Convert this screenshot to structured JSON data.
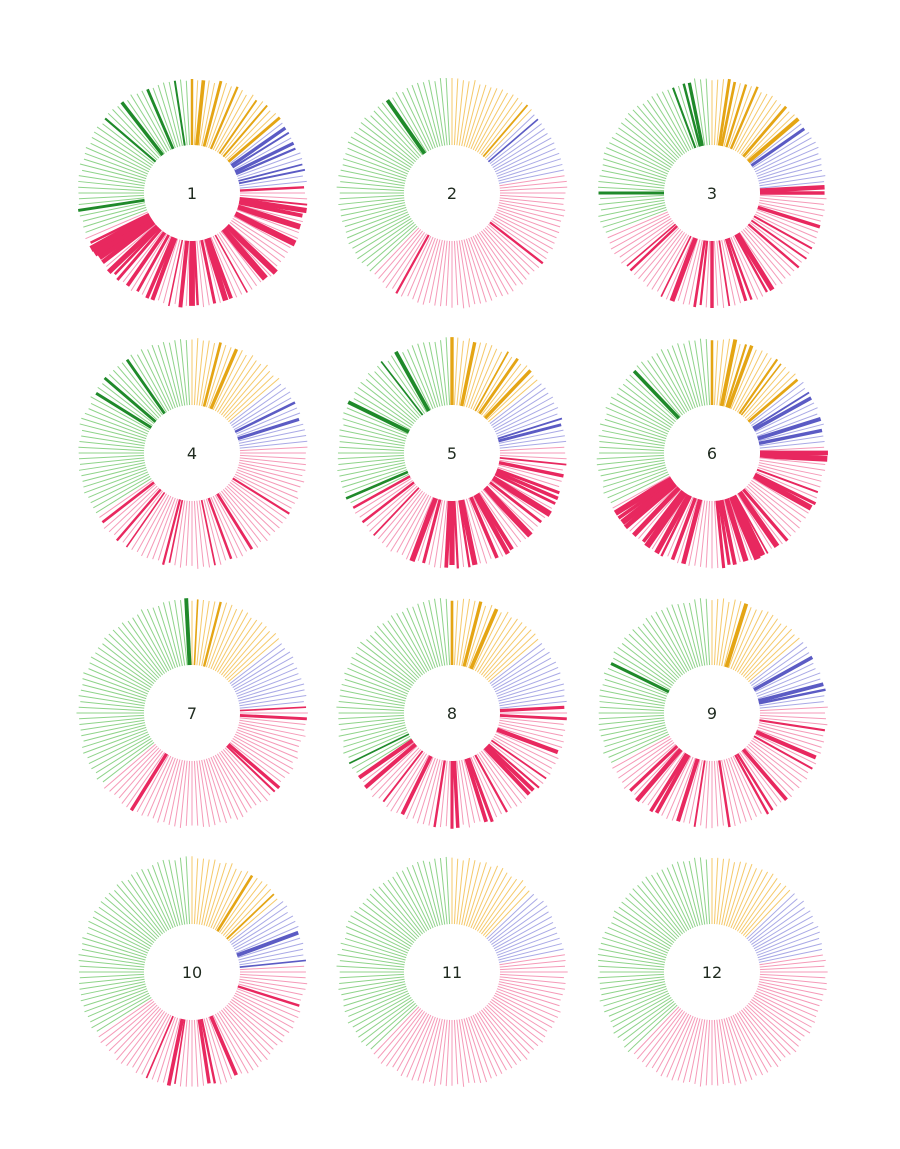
{
  "chart_data": {
    "type": "radial-bar",
    "segment_order": [
      "green",
      "orange",
      "purple",
      "pink"
    ],
    "colors": {
      "green": {
        "light": "#8fd38a",
        "dark": "#1f8a2a"
      },
      "orange": {
        "light": "#f5c96a",
        "dark": "#e4a514"
      },
      "purple": {
        "light": "#a9a9e6",
        "dark": "#5b5bc4"
      },
      "pink": {
        "light": "#f59ab8",
        "dark": "#e8285f"
      }
    },
    "charts": [
      {
        "label": "1",
        "segments": {
          "green": 38,
          "orange": 18,
          "purple": 12,
          "pink": 56
        },
        "intensity": 0.85
      },
      {
        "label": "2",
        "segments": {
          "green": 46,
          "orange": 16,
          "purple": 12,
          "pink": 50
        },
        "intensity": 0.05
      },
      {
        "label": "3",
        "segments": {
          "green": 38,
          "orange": 18,
          "purple": 12,
          "pink": 56
        },
        "intensity": 0.6
      },
      {
        "label": "4",
        "segments": {
          "green": 42,
          "orange": 18,
          "purple": 12,
          "pink": 52
        },
        "intensity": 0.3
      },
      {
        "label": "5",
        "segments": {
          "green": 40,
          "orange": 18,
          "purple": 12,
          "pink": 54
        },
        "intensity": 0.75
      },
      {
        "label": "6",
        "segments": {
          "green": 40,
          "orange": 18,
          "purple": 12,
          "pink": 54
        },
        "intensity": 0.9
      },
      {
        "label": "7",
        "segments": {
          "green": 44,
          "orange": 18,
          "purple": 12,
          "pink": 50
        },
        "intensity": 0.2
      },
      {
        "label": "8",
        "segments": {
          "green": 42,
          "orange": 18,
          "purple": 12,
          "pink": 52
        },
        "intensity": 0.35
      },
      {
        "label": "9",
        "segments": {
          "green": 40,
          "orange": 18,
          "purple": 12,
          "pink": 54
        },
        "intensity": 0.45
      },
      {
        "label": "10",
        "segments": {
          "green": 42,
          "orange": 18,
          "purple": 12,
          "pink": 52
        },
        "intensity": 0.3
      },
      {
        "label": "11",
        "segments": {
          "green": 46,
          "orange": 16,
          "purple": 12,
          "pink": 50
        },
        "intensity": 0.05
      },
      {
        "label": "12",
        "segments": {
          "green": 46,
          "orange": 16,
          "purple": 12,
          "pink": 50
        },
        "intensity": 0.0
      }
    ]
  }
}
